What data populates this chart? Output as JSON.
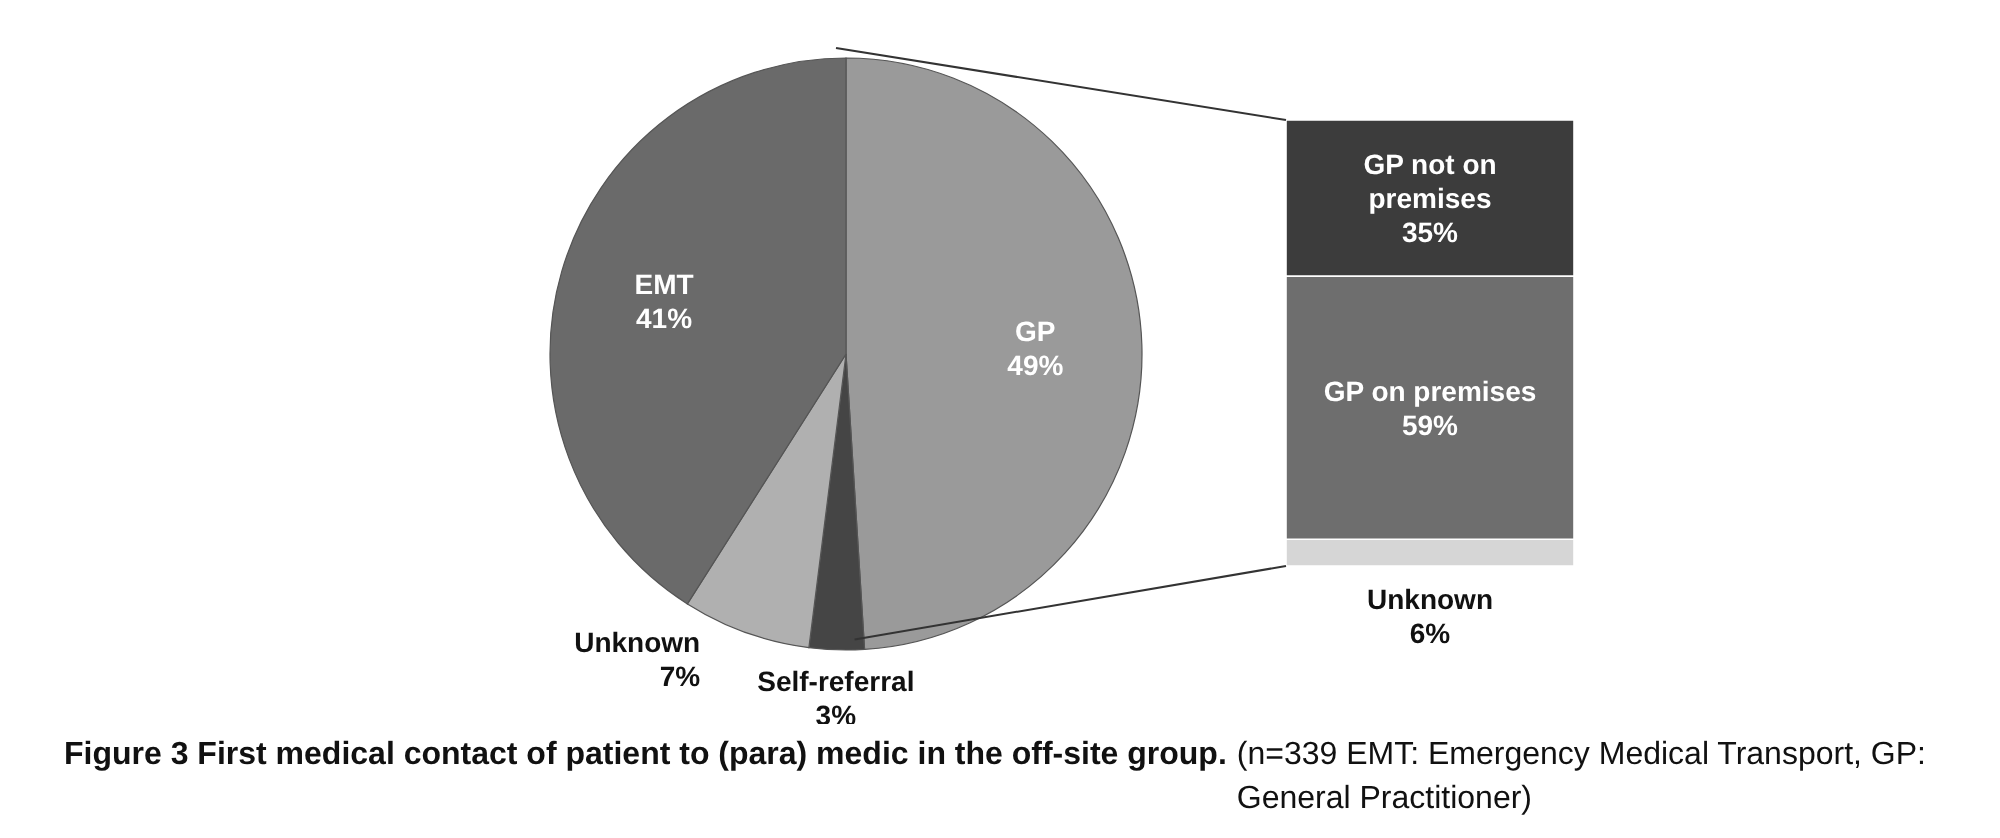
{
  "chart_data": [
    {
      "type": "pie",
      "title": "Figure 3 First medical contact of patient to (para) medic in the off-site group.",
      "annotations": [
        "(n=339 EMT: Emergency Medical Transport, GP: General Practitioner)"
      ],
      "categories": [
        "GP",
        "Self-referral",
        "Unknown",
        "EMT"
      ],
      "values": [
        49,
        3,
        7,
        41
      ],
      "colors": [
        "#9a9a9a",
        "#454545",
        "#b0b0b0",
        "#6a6a6a"
      ],
      "value_labels": [
        "49%",
        "3%",
        "7%",
        "41%"
      ]
    },
    {
      "type": "bar",
      "stacked": true,
      "tick_labels": false,
      "categories": [
        null
      ],
      "series": [
        {
          "name": "Unknown",
          "color": "#d6d6d6",
          "values": [
            6
          ],
          "value_labels": [
            "6%"
          ]
        },
        {
          "name": "GP on premises",
          "color": "#6e6e6e",
          "values": [
            59
          ],
          "value_labels": [
            "59%"
          ]
        },
        {
          "name": "GP not on premises",
          "color": "#3c3c3c",
          "values": [
            35
          ],
          "value_labels": [
            "35%"
          ]
        }
      ]
    }
  ]
}
